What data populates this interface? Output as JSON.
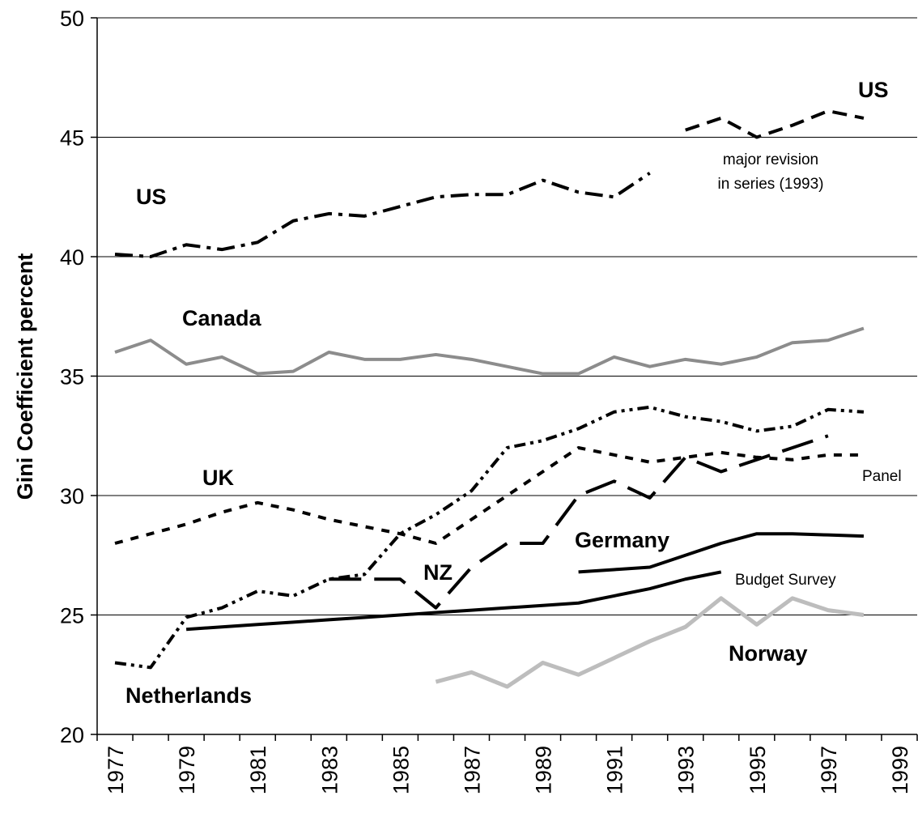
{
  "chart_data": {
    "type": "line",
    "y_label": "Gini Coefficient percent",
    "categories": [
      "1977",
      null,
      "1979",
      null,
      "1981",
      null,
      "1983",
      null,
      "1985",
      null,
      "1987",
      null,
      "1989",
      null,
      "1991",
      null,
      "1993",
      null,
      "1995",
      null,
      "1997",
      null,
      "1999"
    ],
    "ylim": [
      20,
      50
    ],
    "yticks": [
      20,
      25,
      30,
      35,
      40,
      45,
      50
    ],
    "grid": true,
    "series": [
      {
        "name": "US",
        "color": "#000000",
        "style": "dash-dot",
        "values": [
          40.1,
          40.0,
          40.5,
          40.3,
          40.6,
          41.5,
          41.8,
          41.7,
          42.1,
          42.5,
          42.6,
          42.6,
          43.2,
          42.7,
          42.5,
          43.5,
          null,
          null,
          null,
          null,
          null,
          null,
          null
        ]
      },
      {
        "name": "US",
        "color": "#000000",
        "style": "dashed",
        "values": [
          null,
          null,
          null,
          null,
          null,
          null,
          null,
          null,
          null,
          null,
          null,
          null,
          null,
          null,
          null,
          null,
          45.3,
          45.8,
          45.0,
          45.5,
          46.1,
          45.8,
          null
        ]
      },
      {
        "name": "Canada",
        "color": "#8c8c8c",
        "style": "solid",
        "values": [
          36.0,
          36.5,
          35.5,
          35.8,
          35.1,
          35.2,
          36.0,
          35.7,
          35.7,
          35.9,
          35.7,
          35.4,
          35.1,
          35.1,
          35.8,
          35.4,
          35.7,
          35.5,
          35.8,
          36.4,
          36.5,
          37.0,
          null
        ]
      },
      {
        "name": "UK",
        "color": "#000000",
        "style": "dash-dot-dot",
        "values": [
          23.0,
          22.8,
          24.9,
          25.3,
          26.0,
          25.8,
          26.5,
          26.7,
          28.4,
          29.2,
          30.2,
          32.0,
          32.3,
          32.8,
          33.5,
          33.7,
          33.3,
          33.1,
          32.7,
          32.9,
          33.6,
          33.5,
          null
        ]
      },
      {
        "name": "Netherlands",
        "color": "#000000",
        "style": "short-dash",
        "values": [
          28.0,
          28.4,
          28.8,
          29.3,
          29.7,
          29.4,
          29.0,
          28.7,
          28.4,
          28.0,
          29.0,
          30.0,
          31.0,
          32.0,
          31.7,
          31.4,
          31.6,
          31.8,
          31.6,
          31.5,
          31.7,
          31.7,
          null
        ]
      },
      {
        "name": "NZ",
        "color": "#000000",
        "style": "long-dash",
        "values": [
          null,
          null,
          null,
          null,
          null,
          null,
          26.5,
          26.5,
          26.5,
          25.3,
          27.0,
          28.0,
          28.0,
          30.0,
          30.6,
          29.9,
          31.6,
          31.0,
          31.5,
          32.0,
          32.5,
          null,
          null
        ]
      },
      {
        "name": "Budget Survey",
        "color": "#000000",
        "style": "solid",
        "values": [
          null,
          null,
          24.4,
          24.5,
          24.6,
          24.7,
          24.8,
          24.9,
          25.0,
          25.1,
          25.2,
          25.3,
          25.4,
          25.5,
          25.8,
          26.1,
          26.5,
          26.8,
          null,
          null,
          null,
          null,
          null
        ]
      },
      {
        "name": "Panel",
        "color": "#000000",
        "style": "solid",
        "values": [
          null,
          null,
          null,
          null,
          null,
          null,
          null,
          null,
          null,
          null,
          null,
          null,
          null,
          26.8,
          26.9,
          27.0,
          27.5,
          28.0,
          28.4,
          28.4,
          28.35,
          28.3,
          null
        ]
      },
      {
        "name": "Norway",
        "color": "#bdbdbd",
        "style": "solid",
        "values": [
          null,
          null,
          null,
          null,
          null,
          null,
          null,
          null,
          null,
          22.2,
          22.6,
          22.0,
          23.0,
          22.5,
          23.2,
          23.9,
          24.5,
          25.7,
          24.6,
          25.7,
          25.2,
          25.0,
          null
        ]
      }
    ],
    "annotations": [
      "Germany",
      "major revision",
      "in series (1993)"
    ]
  }
}
